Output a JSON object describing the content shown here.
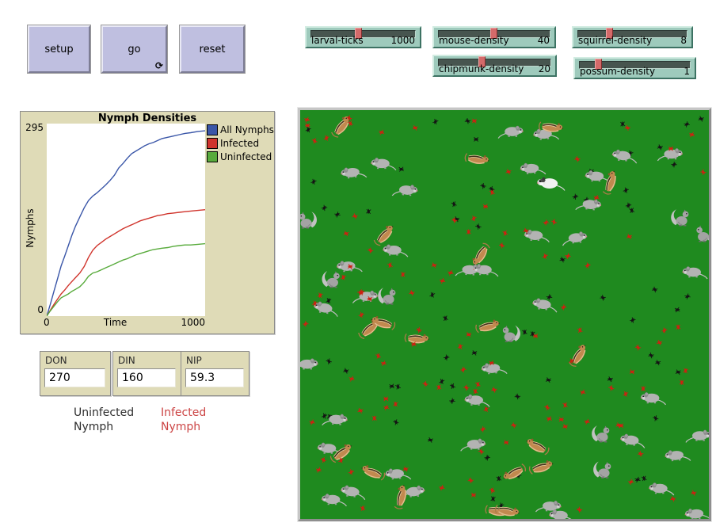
{
  "toolbar": {
    "buttons": [
      {
        "label": "setup"
      },
      {
        "label": "go"
      },
      {
        "label": "reset"
      }
    ],
    "forever_glyph": "⟳"
  },
  "sliders": [
    {
      "label": "larval-ticks",
      "value": "1000",
      "percent": 46
    },
    {
      "label": "mouse-density",
      "value": "40",
      "percent": 50
    },
    {
      "label": "squirrel-density",
      "value": "8",
      "percent": 31
    },
    {
      "label": "chipmunk-density",
      "value": "20",
      "percent": 40
    },
    {
      "label": "possum-density",
      "value": "1",
      "percent": 20
    }
  ],
  "chart_data": {
    "type": "line",
    "title": "Nymph Densities",
    "xlabel": "Time",
    "ylabel": "Nymphs",
    "xlim": [
      0,
      1100
    ],
    "ylim": [
      0,
      295
    ],
    "x_tick_labels": [
      "0",
      "1000"
    ],
    "y_tick_labels": [
      "0",
      "295"
    ],
    "grid": false,
    "legend_position": "top-right-outside",
    "series": [
      {
        "name": "All Nymphs",
        "color": "#3a56a8",
        "points": [
          [
            0,
            0
          ],
          [
            25,
            18
          ],
          [
            50,
            38
          ],
          [
            75,
            57
          ],
          [
            100,
            77
          ],
          [
            125,
            92
          ],
          [
            150,
            108
          ],
          [
            175,
            124
          ],
          [
            200,
            138
          ],
          [
            230,
            152
          ],
          [
            260,
            166
          ],
          [
            290,
            177
          ],
          [
            320,
            184
          ],
          [
            350,
            189
          ],
          [
            380,
            195
          ],
          [
            410,
            201
          ],
          [
            440,
            208
          ],
          [
            470,
            216
          ],
          [
            500,
            227
          ],
          [
            530,
            234
          ],
          [
            560,
            242
          ],
          [
            590,
            249
          ],
          [
            620,
            253
          ],
          [
            650,
            257
          ],
          [
            680,
            261
          ],
          [
            710,
            264
          ],
          [
            740,
            266
          ],
          [
            770,
            269
          ],
          [
            800,
            272
          ],
          [
            840,
            274
          ],
          [
            880,
            276
          ],
          [
            920,
            278
          ],
          [
            960,
            280
          ],
          [
            1000,
            281
          ],
          [
            1050,
            283
          ],
          [
            1100,
            284
          ]
        ]
      },
      {
        "name": "Infected",
        "color": "#d0342c",
        "points": [
          [
            0,
            0
          ],
          [
            25,
            9
          ],
          [
            50,
            18
          ],
          [
            75,
            26
          ],
          [
            100,
            34
          ],
          [
            125,
            40
          ],
          [
            150,
            47
          ],
          [
            175,
            53
          ],
          [
            200,
            59
          ],
          [
            230,
            66
          ],
          [
            260,
            76
          ],
          [
            290,
            90
          ],
          [
            320,
            101
          ],
          [
            350,
            108
          ],
          [
            380,
            113
          ],
          [
            410,
            118
          ],
          [
            440,
            122
          ],
          [
            470,
            126
          ],
          [
            500,
            130
          ],
          [
            530,
            134
          ],
          [
            560,
            137
          ],
          [
            590,
            140
          ],
          [
            620,
            143
          ],
          [
            650,
            146
          ],
          [
            680,
            148
          ],
          [
            710,
            150
          ],
          [
            740,
            152
          ],
          [
            770,
            154
          ],
          [
            800,
            155
          ],
          [
            840,
            157
          ],
          [
            880,
            158
          ],
          [
            920,
            159
          ],
          [
            960,
            160
          ],
          [
            1000,
            161
          ],
          [
            1050,
            162
          ],
          [
            1100,
            163
          ]
        ]
      },
      {
        "name": "Uninfected",
        "color": "#58ab3c",
        "points": [
          [
            0,
            0
          ],
          [
            25,
            8
          ],
          [
            50,
            15
          ],
          [
            75,
            22
          ],
          [
            100,
            28
          ],
          [
            125,
            31
          ],
          [
            150,
            34
          ],
          [
            175,
            38
          ],
          [
            200,
            41
          ],
          [
            230,
            45
          ],
          [
            260,
            52
          ],
          [
            290,
            61
          ],
          [
            320,
            66
          ],
          [
            350,
            68
          ],
          [
            380,
            71
          ],
          [
            410,
            74
          ],
          [
            440,
            77
          ],
          [
            470,
            80
          ],
          [
            500,
            83
          ],
          [
            530,
            86
          ],
          [
            560,
            88
          ],
          [
            590,
            91
          ],
          [
            620,
            94
          ],
          [
            650,
            96
          ],
          [
            680,
            98
          ],
          [
            710,
            100
          ],
          [
            740,
            102
          ],
          [
            770,
            103
          ],
          [
            800,
            104
          ],
          [
            840,
            105
          ],
          [
            880,
            107
          ],
          [
            920,
            108
          ],
          [
            960,
            109
          ],
          [
            1000,
            109
          ],
          [
            1050,
            110
          ],
          [
            1100,
            111
          ]
        ]
      }
    ]
  },
  "monitors": [
    {
      "label": "DON",
      "value": "270"
    },
    {
      "label": "DIN",
      "value": "160"
    },
    {
      "label": "NIP",
      "value": "59.3"
    }
  ],
  "notes": [
    {
      "line1": "Uninfected",
      "line2": "Nymph",
      "color": "#2e2e2e"
    },
    {
      "line1": "Infected",
      "line2": "Nymph",
      "color": "#cc4444"
    }
  ],
  "world": {
    "background_color": "#1f8a1f",
    "infected_tick_color": "#cc2211",
    "uninfected_tick_color": "#141414",
    "mouse_color": "#b3b3b3",
    "chipmunk_color": "#c1894f",
    "squirrel_color": "#a3a3a3",
    "possum_color": "#f1f1f1",
    "tick_counts": {
      "infected": 112,
      "uninfected": 66,
      "seed": 20240613
    },
    "mice": [
      [
        20.3,
        12.9,
        0,
        1
      ],
      [
        12.9,
        15.1,
        -8,
        1
      ],
      [
        25.8,
        19.4,
        5,
        -1
      ],
      [
        23.2,
        34.1,
        0,
        1
      ],
      [
        41.2,
        38.9,
        3,
        -1
      ],
      [
        45.3,
        38.9,
        0,
        1
      ],
      [
        11.9,
        38.0,
        -5,
        1
      ],
      [
        16.0,
        45.4,
        0,
        -1
      ],
      [
        6.3,
        48.3,
        8,
        1
      ],
      [
        51.6,
        5.1,
        0,
        -1
      ],
      [
        60.0,
        5.7,
        -6,
        1
      ],
      [
        79.3,
        11.0,
        4,
        1
      ],
      [
        90.6,
        10.6,
        0,
        -1
      ],
      [
        56.8,
        14.1,
        -4,
        1
      ],
      [
        72.7,
        16.0,
        0,
        1
      ],
      [
        70.7,
        22.9,
        6,
        -1
      ],
      [
        57.8,
        30.5,
        0,
        1
      ],
      [
        67.2,
        31.1,
        -5,
        -1
      ],
      [
        96.5,
        39.5,
        0,
        1
      ],
      [
        59.8,
        47.4,
        5,
        1
      ],
      [
        1.4,
        62.0,
        0,
        -1
      ],
      [
        47.3,
        63.0,
        -6,
        1
      ],
      [
        43.2,
        70.8,
        0,
        1
      ],
      [
        8.6,
        75.5,
        4,
        -1
      ],
      [
        7.2,
        82.6,
        0,
        1
      ],
      [
        23.8,
        88.8,
        -5,
        1
      ],
      [
        42.4,
        81.6,
        0,
        -1
      ],
      [
        12.9,
        93.2,
        6,
        1
      ],
      [
        8.2,
        95.1,
        0,
        1
      ],
      [
        27.5,
        93.2,
        -4,
        -1
      ],
      [
        86.3,
        70.3,
        0,
        1
      ],
      [
        81.3,
        80.6,
        5,
        1
      ],
      [
        97.5,
        79.5,
        0,
        -1
      ],
      [
        92.2,
        84.3,
        -6,
        1
      ],
      [
        88.3,
        92.4,
        0,
        1
      ],
      [
        60.9,
        96.7,
        4,
        -1
      ],
      [
        63.9,
        99.0,
        0,
        1
      ],
      [
        97.1,
        98.6,
        -5,
        1
      ]
    ],
    "chipmunks": [
      [
        10.2,
        4.1,
        -50,
        1
      ],
      [
        43.2,
        12.1,
        10,
        1
      ],
      [
        20.7,
        30.7,
        -45,
        1
      ],
      [
        44.3,
        35.4,
        -60,
        -1
      ],
      [
        61.3,
        4.3,
        8,
        1
      ],
      [
        76.0,
        17.8,
        -70,
        1
      ],
      [
        17.0,
        53.6,
        -40,
        1
      ],
      [
        20.3,
        52.2,
        15,
        -1
      ],
      [
        28.5,
        56.0,
        5,
        1
      ],
      [
        45.9,
        53.0,
        -12,
        1
      ],
      [
        10.2,
        84.0,
        -35,
        1
      ],
      [
        17.8,
        88.8,
        20,
        -1
      ],
      [
        24.8,
        94.7,
        -75,
        1
      ],
      [
        48.2,
        98.2,
        10,
        1
      ],
      [
        68.2,
        60.1,
        -55,
        1
      ],
      [
        58.0,
        82.4,
        25,
        -1
      ],
      [
        59.0,
        87.5,
        -15,
        1
      ],
      [
        52.5,
        88.8,
        -30,
        -1
      ],
      [
        50.6,
        98.2,
        12,
        1
      ]
    ],
    "squirrels": [
      [
        1.8,
        26.8,
        0,
        -1
      ],
      [
        7.6,
        41.3,
        0,
        1
      ],
      [
        21.3,
        45.4,
        0,
        1
      ],
      [
        93.0,
        26.2,
        0,
        1
      ],
      [
        99.0,
        30.1,
        0,
        -1
      ],
      [
        51.6,
        54.6,
        0,
        -1
      ],
      [
        73.6,
        79.1,
        0,
        1
      ],
      [
        74.0,
        87.9,
        0,
        1
      ]
    ],
    "possums": [
      [
        61.3,
        17.8,
        0,
        1
      ]
    ]
  }
}
